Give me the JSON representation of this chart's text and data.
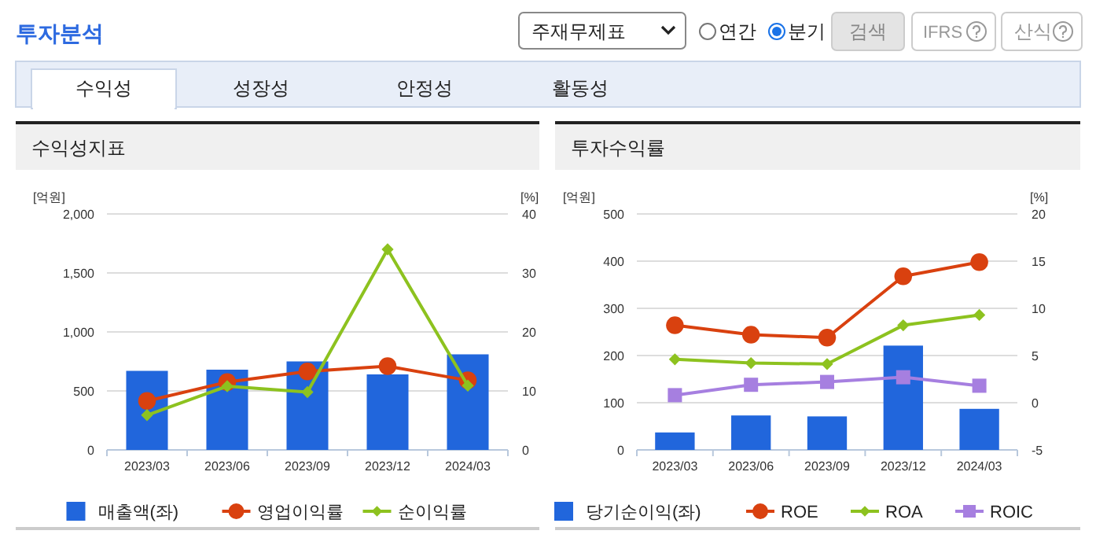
{
  "chart_data": [
    {
      "type": "other",
      "title": "투자분석",
      "annotations": [
        "주재무제표",
        "연간",
        "분기",
        "검색",
        "IFRS",
        "산식",
        "수익성",
        "성장성",
        "안정성",
        "활동성"
      ]
    },
    {
      "type": "bar",
      "title": "수익성지표",
      "ylabel": "[억원]",
      "y2label": "[%]",
      "categories": [
        "2023/03",
        "2023/06",
        "2023/09",
        "2023/12",
        "2024/03"
      ],
      "series": [
        {
          "name": "매출액(좌)",
          "type": "bar",
          "color": "#2166dc",
          "values": [
            670,
            680,
            750,
            640,
            810
          ]
        },
        {
          "name": "영업이익률",
          "type": "line",
          "axis": "y2",
          "marker": "circle",
          "color": "#d9410f",
          "values": [
            8.3,
            11.5,
            13.3,
            14.2,
            11.8
          ]
        },
        {
          "name": "순이익률",
          "type": "line",
          "axis": "y2",
          "marker": "diamond",
          "color": "#8dc21f",
          "values": [
            5.9,
            10.8,
            9.8,
            34.0,
            10.9
          ]
        }
      ],
      "ylim": [
        0,
        2000
      ],
      "yticks": [
        0,
        500,
        {
          "value": 1000,
          "label": "1,000"
        },
        {
          "value": 1500,
          "label": "1,500"
        },
        {
          "value": 2000,
          "label": "2,000"
        }
      ],
      "y2lim": [
        0,
        40
      ],
      "y2ticks": [
        0,
        10,
        20,
        30,
        40
      ],
      "grid": "y",
      "legend": "bottom"
    },
    {
      "type": "bar",
      "title": "투자수익률",
      "ylabel": "[억원]",
      "y2label": "[%]",
      "categories": [
        "2023/03",
        "2023/06",
        "2023/09",
        "2023/12",
        "2024/03"
      ],
      "series": [
        {
          "name": "당기순이익(좌)",
          "type": "bar",
          "color": "#2166dc",
          "values": [
            37,
            73,
            71,
            221,
            87
          ]
        },
        {
          "name": "ROE",
          "type": "line",
          "axis": "y2",
          "marker": "circle",
          "color": "#d9410f",
          "values": [
            8.2,
            7.2,
            6.9,
            13.4,
            14.9
          ]
        },
        {
          "name": "ROA",
          "type": "line",
          "axis": "y2",
          "marker": "diamond",
          "color": "#8dc21f",
          "values": [
            4.6,
            4.2,
            4.1,
            8.2,
            9.3
          ]
        },
        {
          "name": "ROIC",
          "type": "line",
          "axis": "y2",
          "marker": "square",
          "color": "#a67fe0",
          "values": [
            0.8,
            1.9,
            2.2,
            2.7,
            1.8
          ]
        }
      ],
      "ylim": [
        0,
        500
      ],
      "yticks": [
        0,
        100,
        200,
        300,
        400,
        500
      ],
      "y2lim": [
        -5,
        20
      ],
      "y2ticks": [
        -5,
        0,
        5,
        10,
        15,
        20
      ],
      "grid": "y",
      "legend": "bottom"
    }
  ]
}
